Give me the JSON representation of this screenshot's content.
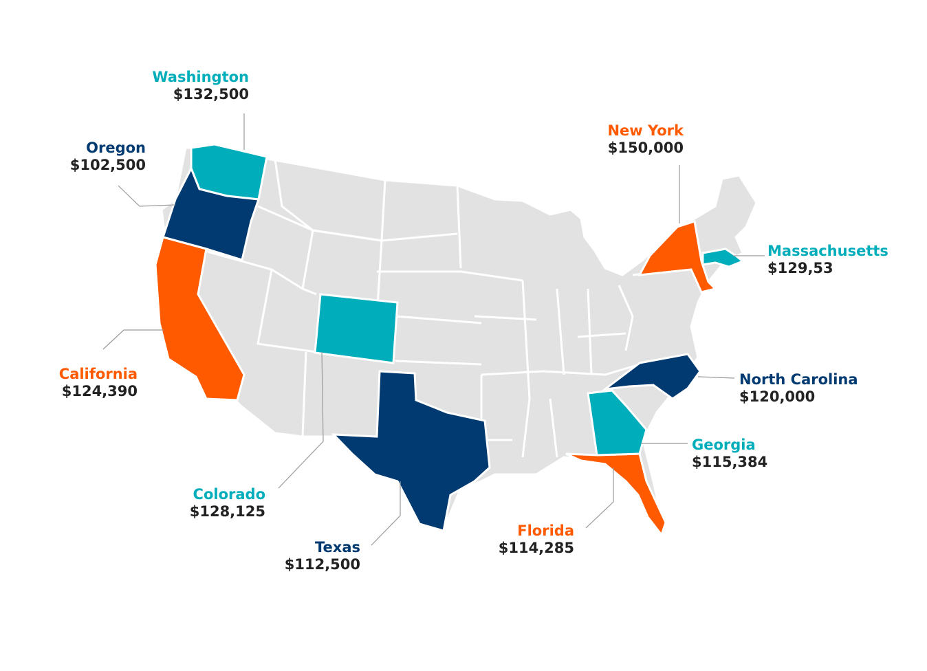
{
  "colors": {
    "base": "#e2e2e2",
    "border": "#ffffff",
    "teal": "#00adbb",
    "navy": "#003a70",
    "orange": "#ff5a00",
    "leader": "#9a9a9a"
  },
  "states": [
    {
      "id": "washington",
      "name": "Washington",
      "value": "$132,500",
      "color": "#00adbb"
    },
    {
      "id": "oregon",
      "name": "Oregon",
      "value": "$102,500",
      "color": "#003a70"
    },
    {
      "id": "california",
      "name": "California",
      "value": "$124,390",
      "color": "#ff5a00"
    },
    {
      "id": "colorado",
      "name": "Colorado",
      "value": "$128,125",
      "color": "#00adbb"
    },
    {
      "id": "texas",
      "name": "Texas",
      "value": "$112,500",
      "color": "#003a70"
    },
    {
      "id": "florida",
      "name": "Florida",
      "value": "$114,285",
      "color": "#ff5a00"
    },
    {
      "id": "georgia",
      "name": "Georgia",
      "value": "$115,384",
      "color": "#00adbb"
    },
    {
      "id": "north-carolina",
      "name": "North Carolina",
      "value": "$120,000",
      "color": "#003a70"
    },
    {
      "id": "massachusetts",
      "name": "Massachusetts",
      "value": "$129,53",
      "color": "#00adbb"
    },
    {
      "id": "new-york",
      "name": "New York",
      "value": "$150,000",
      "color": "#ff5a00"
    }
  ]
}
